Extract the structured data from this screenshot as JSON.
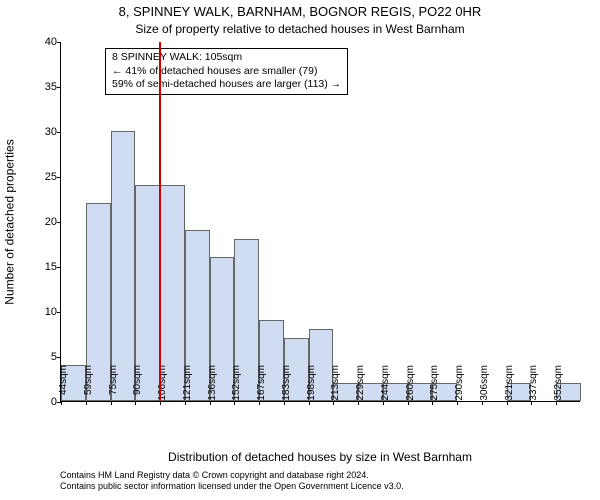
{
  "title": "8, SPINNEY WALK, BARNHAM, BOGNOR REGIS, PO22 0HR",
  "subtitle": "Size of property relative to detached houses in West Barnham",
  "ylabel": "Number of detached properties",
  "xlabel": "Distribution of detached houses by size in West Barnham",
  "footer_line1": "Contains HM Land Registry data © Crown copyright and database right 2024.",
  "footer_line2": "Contains public sector information licensed under the Open Government Licence v3.0.",
  "chart": {
    "type": "histogram",
    "bar_color": "#cfdcf2",
    "bar_border": "#666666",
    "background": "#ffffff",
    "vline_color": "#cc0000",
    "vline_x_sqm": 105,
    "ylim": [
      0,
      40
    ],
    "ytick_step": 5,
    "bin_start_sqm": 44,
    "bin_width_sqm": 15.4,
    "bins": [
      {
        "label": "44sqm",
        "value": 4
      },
      {
        "label": "59sqm",
        "value": 22
      },
      {
        "label": "75sqm",
        "value": 30
      },
      {
        "label": "90sqm",
        "value": 24
      },
      {
        "label": "106sqm",
        "value": 24
      },
      {
        "label": "121sqm",
        "value": 19
      },
      {
        "label": "136sqm",
        "value": 16
      },
      {
        "label": "152sqm",
        "value": 18
      },
      {
        "label": "167sqm",
        "value": 9
      },
      {
        "label": "183sqm",
        "value": 7
      },
      {
        "label": "198sqm",
        "value": 8
      },
      {
        "label": "213sqm",
        "value": 2
      },
      {
        "label": "229sqm",
        "value": 2
      },
      {
        "label": "244sqm",
        "value": 2
      },
      {
        "label": "260sqm",
        "value": 2
      },
      {
        "label": "275sqm",
        "value": 2
      },
      {
        "label": "290sqm",
        "value": 0
      },
      {
        "label": "306sqm",
        "value": 0
      },
      {
        "label": "321sqm",
        "value": 2
      },
      {
        "label": "337sqm",
        "value": 0
      },
      {
        "label": "352sqm",
        "value": 2
      }
    ]
  },
  "annotation": {
    "line1": "8 SPINNEY WALK: 105sqm",
    "line2": "← 41% of detached houses are smaller (79)",
    "line3": "59% of semi-detached houses are larger (113) →"
  }
}
